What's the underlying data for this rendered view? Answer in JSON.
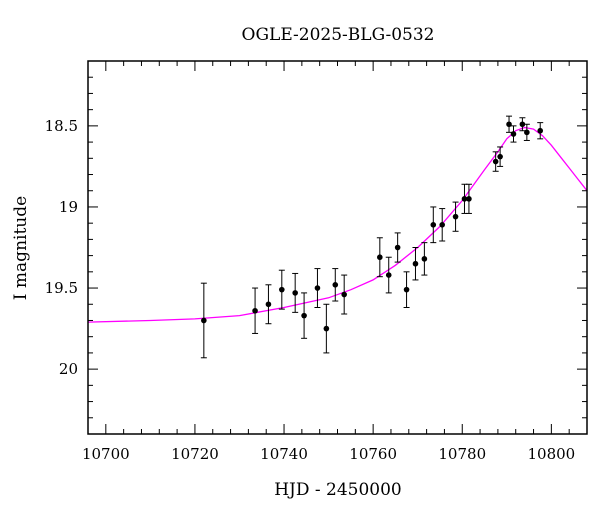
{
  "chart_data": {
    "type": "scatter",
    "title": "OGLE-2025-BLG-0532",
    "xlabel": "HJD - 2450000",
    "ylabel": "I magnitude",
    "xlim": [
      10696,
      10808
    ],
    "ylim": [
      20.4,
      18.1
    ],
    "y_inverted": true,
    "grid": false,
    "x_ticks": [
      10700,
      10720,
      10740,
      10760,
      10780,
      10800
    ],
    "x_tick_labels": [
      "10700",
      "10720",
      "10740",
      "10760",
      "10780",
      "10800"
    ],
    "y_ticks": [
      18.5,
      19,
      19.5,
      20
    ],
    "y_tick_labels": [
      "18.5",
      "19",
      "19.5",
      "20"
    ],
    "colors": {
      "points": "#000000",
      "model": "#ff00ff",
      "frame": "#000000"
    },
    "series": [
      {
        "type": "errorbar",
        "points": [
          {
            "x": 10722.0,
            "y": 19.7,
            "err": 0.23
          },
          {
            "x": 10733.5,
            "y": 19.64,
            "err": 0.14
          },
          {
            "x": 10736.5,
            "y": 19.6,
            "err": 0.12
          },
          {
            "x": 10739.5,
            "y": 19.51,
            "err": 0.12
          },
          {
            "x": 10742.5,
            "y": 19.53,
            "err": 0.12
          },
          {
            "x": 10744.5,
            "y": 19.67,
            "err": 0.14
          },
          {
            "x": 10747.5,
            "y": 19.5,
            "err": 0.12
          },
          {
            "x": 10749.5,
            "y": 19.75,
            "err": 0.15
          },
          {
            "x": 10751.5,
            "y": 19.48,
            "err": 0.1
          },
          {
            "x": 10753.5,
            "y": 19.54,
            "err": 0.12
          },
          {
            "x": 10761.5,
            "y": 19.31,
            "err": 0.12
          },
          {
            "x": 10763.5,
            "y": 19.42,
            "err": 0.11
          },
          {
            "x": 10765.5,
            "y": 19.25,
            "err": 0.09
          },
          {
            "x": 10767.5,
            "y": 19.51,
            "err": 0.11
          },
          {
            "x": 10769.5,
            "y": 19.35,
            "err": 0.1
          },
          {
            "x": 10771.5,
            "y": 19.32,
            "err": 0.1
          },
          {
            "x": 10773.5,
            "y": 19.11,
            "err": 0.11
          },
          {
            "x": 10775.5,
            "y": 19.11,
            "err": 0.1
          },
          {
            "x": 10778.5,
            "y": 19.06,
            "err": 0.09
          },
          {
            "x": 10780.5,
            "y": 18.95,
            "err": 0.09
          },
          {
            "x": 10781.5,
            "y": 18.95,
            "err": 0.09
          },
          {
            "x": 10787.5,
            "y": 18.72,
            "err": 0.06
          },
          {
            "x": 10788.5,
            "y": 18.69,
            "err": 0.06
          },
          {
            "x": 10790.5,
            "y": 18.49,
            "err": 0.05
          },
          {
            "x": 10791.5,
            "y": 18.55,
            "err": 0.05
          },
          {
            "x": 10793.5,
            "y": 18.49,
            "err": 0.04
          },
          {
            "x": 10794.5,
            "y": 18.54,
            "err": 0.05
          },
          {
            "x": 10797.5,
            "y": 18.53,
            "err": 0.05
          }
        ]
      },
      {
        "type": "line",
        "points": [
          [
            10696,
            19.71
          ],
          [
            10710,
            19.7
          ],
          [
            10720,
            19.69
          ],
          [
            10730,
            19.67
          ],
          [
            10740,
            19.62
          ],
          [
            10750,
            19.56
          ],
          [
            10755,
            19.51
          ],
          [
            10760,
            19.45
          ],
          [
            10765,
            19.36
          ],
          [
            10770,
            19.25
          ],
          [
            10775,
            19.12
          ],
          [
            10780,
            18.96
          ],
          [
            10785,
            18.77
          ],
          [
            10788,
            18.66
          ],
          [
            10790,
            18.58
          ],
          [
            10792,
            18.53
          ],
          [
            10794,
            18.51
          ],
          [
            10796,
            18.52
          ],
          [
            10798,
            18.56
          ],
          [
            10800,
            18.62
          ],
          [
            10802,
            18.69
          ],
          [
            10804,
            18.76
          ],
          [
            10806,
            18.83
          ],
          [
            10808,
            18.9
          ]
        ]
      }
    ]
  }
}
